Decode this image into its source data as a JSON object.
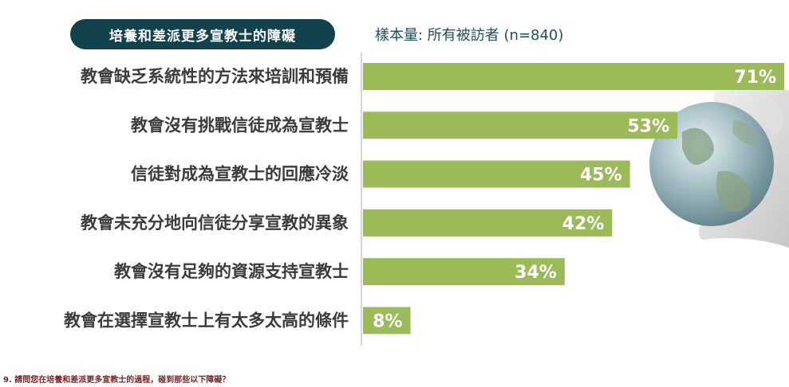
{
  "header": {
    "title": "培養和差派更多宣教士的障礙",
    "sample_note": "樣本量: 所有被訪者 (n=840)"
  },
  "chart_data": {
    "type": "bar",
    "orientation": "horizontal",
    "categories": [
      "教會缺乏系統性的方法來培訓和預備",
      "教會沒有挑戰信徒成為宣教士",
      "信徒對成為宣教士的回應冷淡",
      "教會未充分地向信徒分享宣教的異象",
      "教會沒有足夠的資源支持宣教士",
      "教會在選擇宣教士上有太多太高的條件"
    ],
    "values": [
      71,
      53,
      45,
      42,
      34,
      8
    ],
    "value_labels": [
      "71%",
      "53%",
      "45%",
      "42%",
      "34%",
      "8%"
    ],
    "xlim": [
      0,
      71
    ],
    "grid": false,
    "bar_color": "#9bbb59"
  },
  "footnote": "9. 請問您在培養和差派更多宣教士的過程，碰到那些以下障礙？",
  "colors": {
    "title_bg": "#12434d",
    "bar": "#9bbb59",
    "footnote": "#7a2323"
  }
}
